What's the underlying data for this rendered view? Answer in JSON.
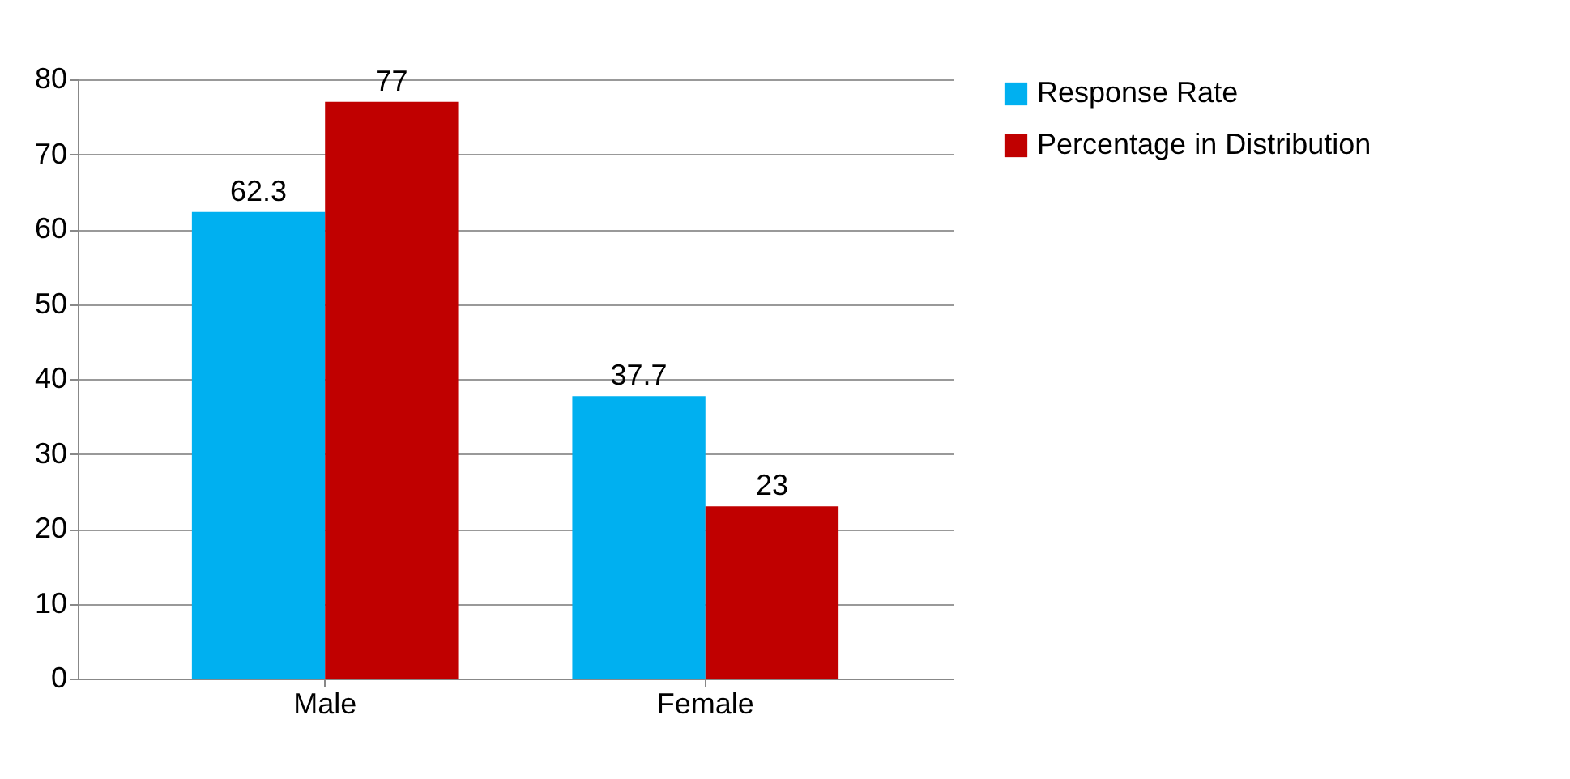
{
  "chart_data": {
    "type": "bar",
    "categories": [
      "Male",
      "Female"
    ],
    "series": [
      {
        "name": "Response Rate",
        "color": "#00b0f0",
        "values": [
          62.3,
          37.7
        ]
      },
      {
        "name": "Percentage in Distribution",
        "color": "#c00000",
        "values": [
          77,
          23
        ]
      }
    ],
    "ylim": [
      0,
      80
    ],
    "yticks": [
      0,
      10,
      20,
      30,
      40,
      50,
      60,
      70,
      80
    ],
    "grid": "y",
    "legend": "right",
    "data_labels": true
  }
}
